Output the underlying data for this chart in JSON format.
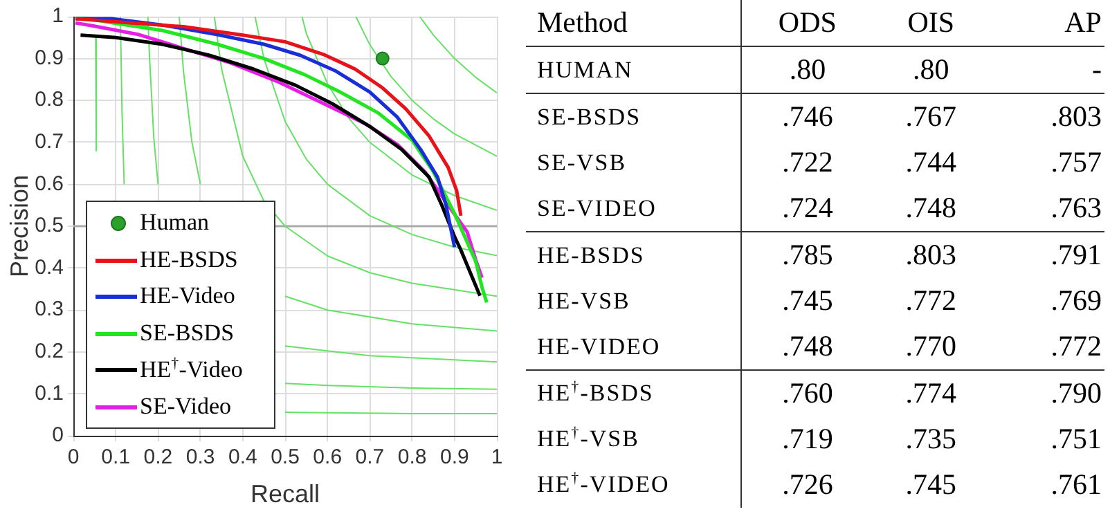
{
  "chart_data": [
    {
      "type": "line",
      "xlabel": "Recall",
      "ylabel": "Precision",
      "xlim": [
        0,
        1
      ],
      "ylim": [
        0,
        1
      ],
      "xticks": [
        0,
        0.1,
        0.2,
        0.3,
        0.4,
        0.5,
        0.6,
        0.7,
        0.8,
        0.9,
        1
      ],
      "yticks": [
        0,
        0.1,
        0.2,
        0.3,
        0.4,
        0.5,
        0.6,
        0.7,
        0.8,
        0.9,
        1
      ],
      "grid": true,
      "legend": "bottom left",
      "ref_lines": [
        {
          "axis": "y",
          "value": 0.5,
          "color": "#aaaaaa"
        }
      ],
      "series": [
        {
          "type": "line",
          "color": "#66e066",
          "x": [
            0.0527,
            0.054,
            0.3,
            0.5,
            0.6,
            0.8,
            1
          ],
          "values": [
            0.95,
            0.68,
            null,
            0.056,
            0.055,
            0.053,
            0.053
          ]
        },
        {
          "type": "line",
          "color": "#66e066",
          "x": [
            0.111,
            0.115,
            0.12,
            0.3,
            0.5,
            0.6,
            0.8,
            1
          ],
          "values": [
            1,
            0.77,
            0.6,
            null,
            0.125,
            0.12,
            0.114,
            0.111
          ]
        },
        {
          "type": "line",
          "color": "#66e066",
          "x": [
            0.176,
            0.18,
            0.19,
            0.2,
            0.3,
            0.5,
            0.7,
            1
          ],
          "values": [
            1,
            0.9,
            0.71,
            0.6,
            null,
            0.214,
            0.191,
            0.176
          ]
        },
        {
          "type": "line",
          "color": "#66e066",
          "x": [
            0.25,
            0.26,
            0.28,
            0.3,
            0.4,
            0.5,
            0.6,
            0.8,
            1
          ],
          "values": [
            1,
            0.87,
            0.7,
            0.6,
            null,
            0.333,
            0.3,
            0.267,
            0.25
          ]
        },
        {
          "type": "line",
          "color": "#66e066",
          "x": [
            0.333,
            0.35,
            0.4,
            0.45,
            0.5,
            0.6,
            0.7,
            0.8,
            1
          ],
          "values": [
            1,
            0.875,
            0.667,
            0.56,
            0.5,
            0.429,
            0.389,
            0.364,
            0.333
          ]
        },
        {
          "type": "line",
          "color": "#66e066",
          "x": [
            0.429,
            0.45,
            0.5,
            0.55,
            0.6,
            0.7,
            0.8,
            0.9,
            1
          ],
          "values": [
            1,
            0.9,
            0.75,
            0.66,
            0.6,
            0.525,
            0.48,
            0.45,
            0.43
          ]
        },
        {
          "type": "line",
          "color": "#66e066",
          "x": [
            0.54,
            0.55,
            0.6,
            0.65,
            0.7,
            0.8,
            0.9,
            1
          ],
          "values": [
            1,
            0.96,
            0.84,
            0.758,
            0.7,
            0.622,
            0.573,
            0.538
          ]
        },
        {
          "type": "line",
          "color": "#66e066",
          "x": [
            0.667,
            0.7,
            0.75,
            0.8,
            0.85,
            0.9,
            1
          ],
          "values": [
            1,
            0.933,
            0.857,
            0.8,
            0.756,
            0.72,
            0.667
          ]
        },
        {
          "type": "line",
          "color": "#66e066",
          "x": [
            0.818,
            0.85,
            0.9,
            0.95,
            1
          ],
          "values": [
            1,
            0.956,
            0.9,
            0.855,
            0.818
          ]
        },
        {
          "type": "scatter",
          "name": "Human",
          "color": "#2ca02c",
          "marker": "circle",
          "x": [
            0.73
          ],
          "values": [
            0.9
          ]
        },
        {
          "type": "line",
          "name": "HE-BSDS",
          "color": "#e8121a",
          "x": [
            0.005,
            0.15,
            0.26,
            0.4,
            0.5,
            0.59,
            0.665,
            0.73,
            0.785,
            0.84,
            0.885,
            0.905,
            0.915
          ],
          "values": [
            0.995,
            0.984,
            0.976,
            0.956,
            0.94,
            0.91,
            0.875,
            0.83,
            0.78,
            0.715,
            0.64,
            0.585,
            0.525
          ]
        },
        {
          "type": "line",
          "name": "HE-Video",
          "color": "#1a2ed8",
          "x": [
            0.005,
            0.09,
            0.21,
            0.34,
            0.45,
            0.535,
            0.62,
            0.7,
            0.765,
            0.82,
            0.86,
            0.88,
            0.9
          ],
          "values": [
            0.995,
            0.995,
            0.98,
            0.957,
            0.934,
            0.908,
            0.87,
            0.82,
            0.76,
            0.683,
            0.617,
            0.55,
            0.45
          ]
        },
        {
          "type": "line",
          "name": "SE-BSDS",
          "color": "#22e622",
          "x": [
            0.005,
            0.1,
            0.21,
            0.34,
            0.45,
            0.545,
            0.63,
            0.72,
            0.8,
            0.85,
            0.9,
            0.95,
            0.965,
            0.976
          ],
          "values": [
            1,
            0.984,
            0.967,
            0.934,
            0.9,
            0.862,
            0.82,
            0.77,
            0.705,
            0.63,
            0.53,
            0.416,
            0.354,
            0.318
          ]
        },
        {
          "type": "line",
          "name": "HE$^{†}$-Video",
          "color": "#000000",
          "x": [
            0.017,
            0.1,
            0.21,
            0.32,
            0.425,
            0.525,
            0.61,
            0.7,
            0.775,
            0.84,
            0.87,
            0.9,
            0.915,
            0.96
          ],
          "values": [
            0.956,
            0.95,
            0.934,
            0.908,
            0.875,
            0.836,
            0.793,
            0.738,
            0.683,
            0.617,
            0.55,
            0.475,
            0.443,
            0.334
          ]
        },
        {
          "type": "line",
          "name": "SE-Video",
          "color": "#e61ee6",
          "x": [
            0.005,
            0.045,
            0.155,
            0.26,
            0.37,
            0.48,
            0.59,
            0.69,
            0.765,
            0.83,
            0.885,
            0.93,
            0.95,
            0.965
          ],
          "values": [
            0.985,
            0.978,
            0.957,
            0.924,
            0.89,
            0.846,
            0.793,
            0.744,
            0.695,
            0.63,
            0.55,
            0.486,
            0.42,
            0.377
          ]
        }
      ]
    },
    {
      "type": "other",
      "annotations": [
        "Method"
      ],
      "categories": [
        "HUMAN",
        "SE-BSDS",
        "SE-VSB",
        "SE-VIDEO",
        "HE-BSDS",
        "HE-VSB",
        "HE-VIDEO",
        "HE$^{†}$-BSDS",
        "HE$^{†}$-VSB",
        "HE$^{†}$-VIDEO"
      ],
      "series": [
        {
          "name": "ODS",
          "values": [
            0.8,
            0.746,
            0.722,
            0.724,
            0.785,
            0.745,
            0.748,
            0.76,
            0.719,
            0.726
          ],
          "value_labels": [
            ".80",
            ".746",
            ".722",
            ".724",
            ".785",
            ".745",
            ".748",
            ".760",
            ".719",
            ".726"
          ]
        },
        {
          "name": "OIS",
          "values": [
            0.8,
            0.767,
            0.744,
            0.748,
            0.803,
            0.772,
            0.77,
            0.774,
            0.735,
            0.745
          ],
          "value_labels": [
            ".80",
            ".767",
            ".744",
            ".748",
            ".803",
            ".772",
            ".770",
            ".774",
            ".735",
            ".745"
          ]
        },
        {
          "name": "AP",
          "values": [
            null,
            0.803,
            0.757,
            0.763,
            0.791,
            0.769,
            0.772,
            0.79,
            0.751,
            0.761
          ],
          "value_labels": [
            "-",
            ".803",
            ".757",
            ".763",
            ".791",
            ".769",
            ".772",
            ".790",
            ".751",
            ".761"
          ]
        }
      ]
    }
  ]
}
